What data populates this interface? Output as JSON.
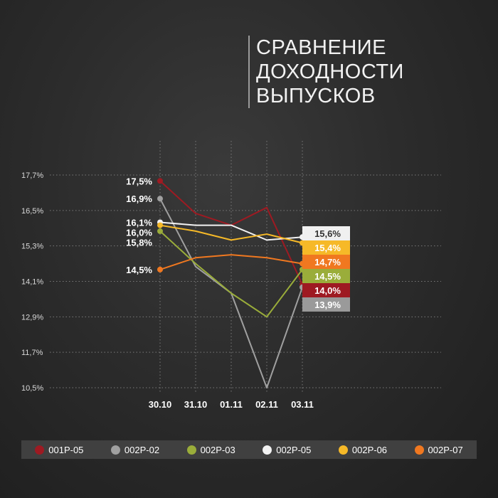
{
  "title": [
    "СРАВНЕНИЕ",
    "ДОХОДНОСТИ",
    "ВЫПУСКОВ"
  ],
  "chart_data": {
    "type": "line",
    "categories": [
      "30.10",
      "31.10",
      "01.11",
      "02.11",
      "03.11"
    ],
    "ytick_labels": [
      "17,7%",
      "16,5%",
      "15,3%",
      "14,1%",
      "12,9%",
      "11,7%",
      "10,5%"
    ],
    "ylim": [
      10.5,
      17.7
    ],
    "grid": true,
    "legend_position": "bottom",
    "series": [
      {
        "name": "001P-05",
        "color": "#9e1a22",
        "values": [
          17.5,
          16.4,
          16.0,
          16.6,
          14.0
        ],
        "start_label": "17,5%",
        "end_label": "14,0%",
        "end_label_color": "#ffffff",
        "end_box": "#9e1a22"
      },
      {
        "name": "002P-02",
        "color": "#a0a0a0",
        "values": [
          16.9,
          14.6,
          13.7,
          10.5,
          13.9
        ],
        "start_label": "16,9%",
        "end_label": "13,9%",
        "end_label_color": "#ffffff",
        "end_box": "#9a9a9a"
      },
      {
        "name": "002P-03",
        "color": "#9aad3a",
        "values": [
          15.8,
          14.7,
          13.7,
          12.9,
          14.5
        ],
        "start_label": "15,8%",
        "end_label": "14,5%",
        "end_label_color": "#ffffff",
        "end_box": "#9aad3a"
      },
      {
        "name": "002P-05",
        "color": "#f2f2f2",
        "values": [
          16.1,
          16.0,
          16.0,
          15.5,
          15.6
        ],
        "start_label": "16,1%",
        "end_label": "15,6%",
        "end_label_color": "#333333",
        "end_box": "#f0f0f0"
      },
      {
        "name": "002P-06",
        "color": "#f6b928",
        "values": [
          16.0,
          15.8,
          15.5,
          15.7,
          15.4
        ],
        "start_label": "16,0%",
        "end_label": "15,4%",
        "end_label_color": "#ffffff",
        "end_box": "#f6b928"
      },
      {
        "name": "002P-07",
        "color": "#f07820",
        "values": [
          14.5,
          14.9,
          15.0,
          14.9,
          14.7
        ],
        "start_label": "14,5%",
        "end_label": "14,7%",
        "end_label_color": "#ffffff",
        "end_box": "#f07820"
      }
    ]
  }
}
